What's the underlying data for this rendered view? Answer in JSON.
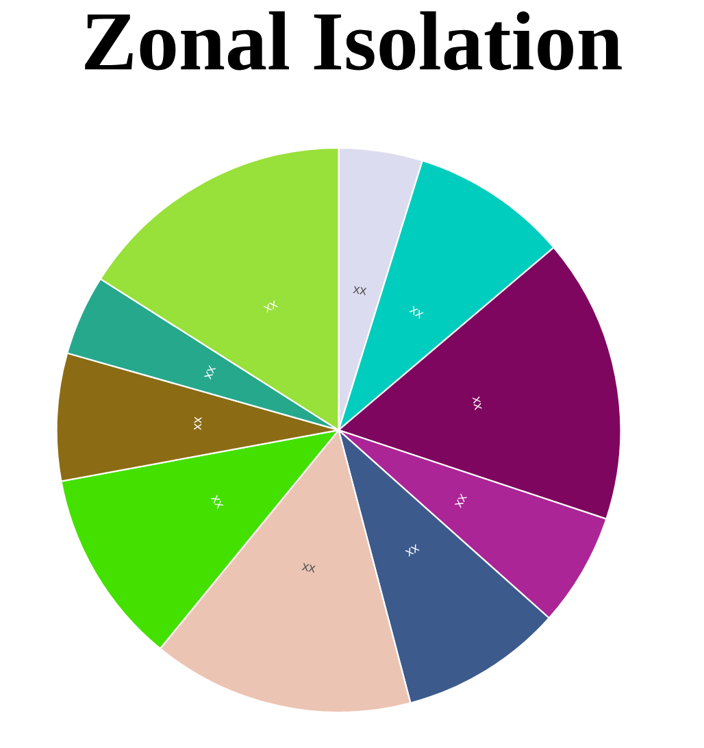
{
  "chart_data": {
    "type": "pie",
    "title": "Zonal Isolation",
    "categories": [
      "xx",
      "xx",
      "xx",
      "xx",
      "xx",
      "xx",
      "xx",
      "xx",
      "xx",
      "xx"
    ],
    "values": [
      4.8,
      9.0,
      16.3,
      6.5,
      9.3,
      15.0,
      11.2,
      7.3,
      4.6,
      16.0
    ],
    "colors": [
      "#dcdcf0",
      "#00cdbd",
      "#7f065f",
      "#ab2597",
      "#3c5a8c",
      "#ecc4b4",
      "#44e000",
      "#8b6b14",
      "#26a88c",
      "#98e03a"
    ]
  }
}
